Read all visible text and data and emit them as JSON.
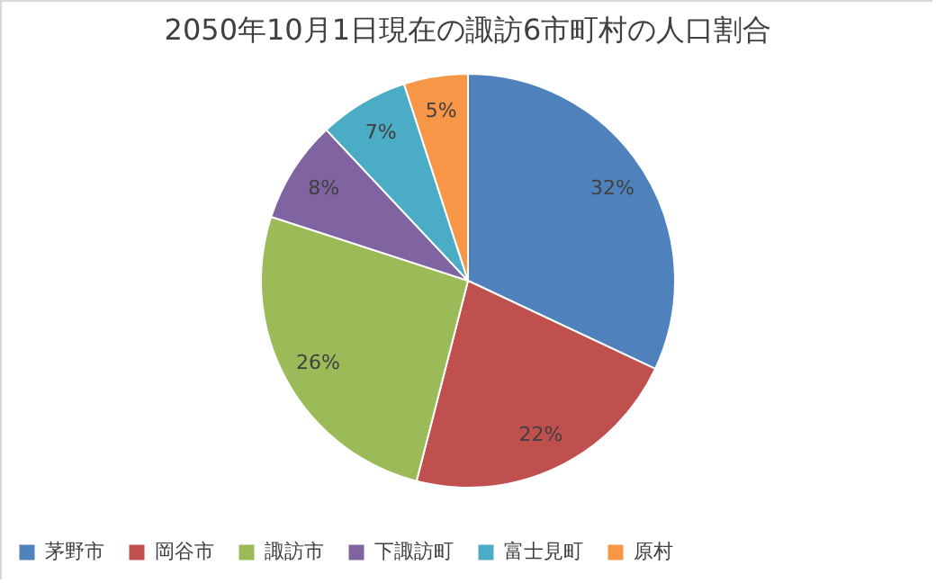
{
  "chart_data": {
    "type": "pie",
    "title": "2050年10月1日現在の諏訪6市町村の人口割合",
    "categories": [
      "茅野市",
      "岡谷市",
      "諏訪市",
      "下諏訪町",
      "富士見町",
      "原村"
    ],
    "values": [
      32,
      22,
      26,
      8,
      7,
      5
    ],
    "colors": [
      "#4f81bd",
      "#c0504d",
      "#9bbb59",
      "#8064a2",
      "#4bacc6",
      "#f79646"
    ],
    "value_labels": [
      "32%",
      "22%",
      "26%",
      "8%",
      "7%",
      "5%"
    ],
    "legend": "bottom"
  }
}
